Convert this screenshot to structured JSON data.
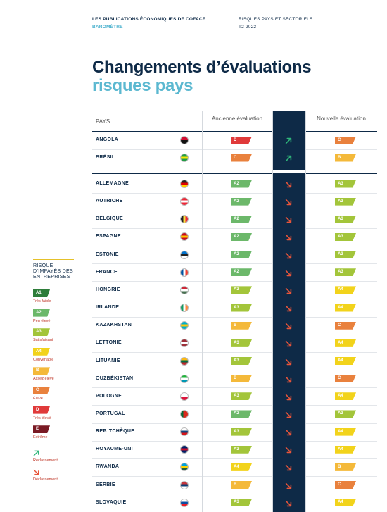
{
  "header": {
    "publisher": "LES PUBLICATIONS ÉCONOMIQUES DE COFACE",
    "series": "BAROMÈTRE",
    "topic": "RISQUES PAYS ET SECTORIELS",
    "period": "T2 2022"
  },
  "title": {
    "line1": "Changements d’évaluations",
    "line2": "risques pays"
  },
  "table": {
    "columns": [
      "PAYS",
      "Ancienne évaluation",
      "Nouvelle évaluation"
    ],
    "groups": [
      [
        {
          "country": "ANGOLA",
          "old": "D",
          "new": "C",
          "flag": [
            "#d21034",
            "#111111"
          ]
        },
        {
          "country": "BRÉSIL",
          "old": "C",
          "new": "B",
          "flag": [
            "#229e45",
            "#f8e509",
            "#229e45"
          ]
        }
      ],
      [
        {
          "country": "ALLEMAGNE",
          "old": "A2",
          "new": "A3",
          "flag": [
            "#222222",
            "#dd0000",
            "#ffce00"
          ]
        },
        {
          "country": "AUTRICHE",
          "old": "A2",
          "new": "A3",
          "flag": [
            "#ed2939",
            "#ffffff",
            "#ed2939"
          ]
        },
        {
          "country": "BELGIQUE",
          "old": "A2",
          "new": "A3",
          "flag": [
            "#222222",
            "#fae042",
            "#ed2939"
          ],
          "vertical": true
        },
        {
          "country": "ESPAGNE",
          "old": "A2",
          "new": "A3",
          "flag": [
            "#c60b1e",
            "#ffc400",
            "#c60b1e"
          ]
        },
        {
          "country": "ESTONIE",
          "old": "A2",
          "new": "A3",
          "flag": [
            "#0072ce",
            "#222222",
            "#ffffff"
          ]
        },
        {
          "country": "FRANCE",
          "old": "A2",
          "new": "A3",
          "flag": [
            "#0055a4",
            "#ffffff",
            "#ef4135"
          ],
          "vertical": true
        },
        {
          "country": "HONGRIE",
          "old": "A3",
          "new": "A4",
          "flag": [
            "#ce2939",
            "#ffffff",
            "#477050"
          ]
        },
        {
          "country": "IRLANDE",
          "old": "A3",
          "new": "A4",
          "flag": [
            "#169b62",
            "#ffffff",
            "#ff883e"
          ],
          "vertical": true
        },
        {
          "country": "KAZAKHSTAN",
          "old": "B",
          "new": "C",
          "flag": [
            "#00afca",
            "#fec50c",
            "#00afca"
          ]
        },
        {
          "country": "LETTONIE",
          "old": "A3",
          "new": "A4",
          "flag": [
            "#9e3039",
            "#ffffff",
            "#9e3039"
          ]
        },
        {
          "country": "LITUANIE",
          "old": "A3",
          "new": "A4",
          "flag": [
            "#fdb913",
            "#006a44",
            "#c1272d"
          ]
        },
        {
          "country": "OUZBÉKISTAN",
          "old": "B",
          "new": "C",
          "flag": [
            "#1eb53a",
            "#ffffff",
            "#0099b5"
          ]
        },
        {
          "country": "POLOGNE",
          "old": "A3",
          "new": "A4",
          "flag": [
            "#ffffff",
            "#dc143c"
          ]
        },
        {
          "country": "PORTUGAL",
          "old": "A2",
          "new": "A3",
          "flag": [
            "#046a38",
            "#da291c",
            "#da291c"
          ],
          "vertical": true
        },
        {
          "country": "REP. TCHÈQUE",
          "old": "A3",
          "new": "A4",
          "flag": [
            "#ffffff",
            "#11457e",
            "#d7141a"
          ]
        },
        {
          "country": "ROYAUME-UNI",
          "old": "A3",
          "new": "A4",
          "flag": [
            "#012169",
            "#c8102e",
            "#012169"
          ]
        },
        {
          "country": "RWANDA",
          "old": "A4",
          "new": "B",
          "flag": [
            "#00a1de",
            "#fad201",
            "#20603d"
          ]
        },
        {
          "country": "SERBIE",
          "old": "B",
          "new": "C",
          "flag": [
            "#c6363c",
            "#0c4076",
            "#ffffff"
          ]
        },
        {
          "country": "SLOVAQUIE",
          "old": "A3",
          "new": "A4",
          "flag": [
            "#ffffff",
            "#0b4ea2",
            "#ee1c25"
          ]
        }
      ]
    ]
  },
  "legend": {
    "title": "RISQUE D’IMPAYÉS DES ENTREPRISES",
    "items": [
      {
        "code": "A1",
        "label": "Très faible",
        "color": "#2e7d3a"
      },
      {
        "code": "A2",
        "label": "Peu élevé",
        "color": "#6cb86a"
      },
      {
        "code": "A3",
        "label": "Satisfaisant",
        "color": "#a3c53a"
      },
      {
        "code": "A4",
        "label": "Convenable",
        "color": "#f2d31b"
      },
      {
        "code": "B",
        "label": "Assez élevé",
        "color": "#f4b93a"
      },
      {
        "code": "C",
        "label": "Élevé",
        "color": "#e9813d"
      },
      {
        "code": "D",
        "label": "Très élevé",
        "color": "#e03a3a"
      },
      {
        "code": "E",
        "label": "Extrême",
        "color": "#7a1a24"
      }
    ],
    "upgrade": {
      "label": "Reclassement",
      "color": "#2fb57a"
    },
    "downgrade": {
      "label": "Déclassement",
      "color": "#e8553a"
    }
  }
}
